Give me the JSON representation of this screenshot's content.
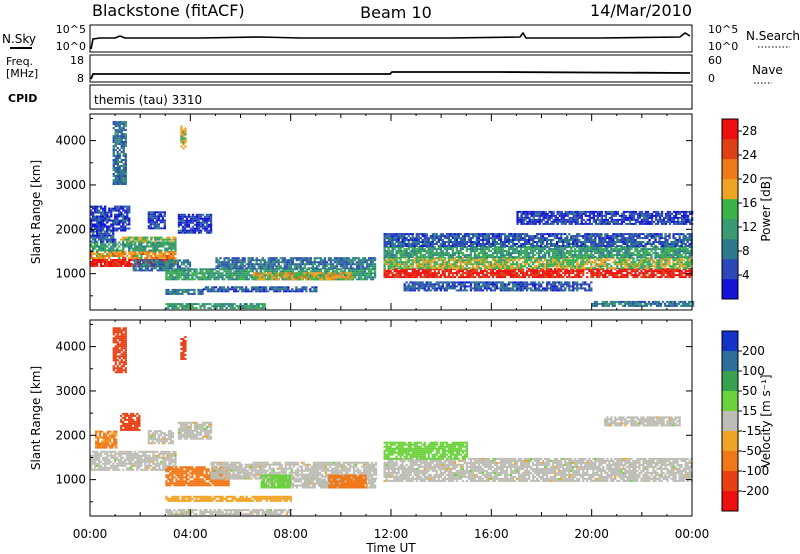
{
  "header": {
    "station": "Blackstone (fitACF)",
    "beam": "Beam 10",
    "date": "14/Mar/2010"
  },
  "top_panels": {
    "nsky": {
      "label": "N.Sky",
      "ticks": [
        "10^5",
        "10^0"
      ]
    },
    "nsearch": {
      "label": "N.Search",
      "ticks": [
        "10^5",
        "10^0"
      ]
    },
    "freq": {
      "label_lines": [
        "Freq.",
        "[MHz]"
      ],
      "ticks": [
        "18",
        "8"
      ]
    },
    "nave": {
      "label": "Nave",
      "ticks": [
        "60",
        "0"
      ]
    },
    "cpid": {
      "label": "CPID",
      "value": "themis (tau) 3310"
    }
  },
  "colors": {
    "background": "#ffffff",
    "axis": "#000000",
    "ground_scatter": "#bdbdb5"
  },
  "chart_data": [
    {
      "type": "heatmap",
      "name": "power",
      "ylabel": "Slant Range [km]",
      "xlabel": "Time UT",
      "x_ticks": [
        "00:00",
        "04:00",
        "08:00",
        "12:00",
        "16:00",
        "20:00",
        "00:00"
      ],
      "y_ticks": [
        1000,
        2000,
        3000,
        4000
      ],
      "ylim": [
        180,
        4600
      ],
      "xlim_hours": [
        0,
        24
      ],
      "colorbar": {
        "label": "Power [dB]",
        "ticks": [
          4,
          8,
          12,
          16,
          20,
          24,
          28
        ],
        "range": [
          0,
          30
        ],
        "colors": [
          "#1414d6",
          "#2d48b8",
          "#2e7a8c",
          "#3a9a72",
          "#39b24a",
          "#f0a424",
          "#f07a18",
          "#e04016",
          "#ee1010"
        ]
      },
      "regions": [
        {
          "t0": 0.0,
          "t1": 3.4,
          "r0": 1150,
          "r1": 1330,
          "level": 28
        },
        {
          "t0": 0.0,
          "t1": 3.4,
          "r0": 1330,
          "r1": 1500,
          "level": 20
        },
        {
          "t0": 0.0,
          "t1": 3.4,
          "r0": 1500,
          "r1": 1700,
          "level": 12
        },
        {
          "t0": 0.0,
          "t1": 1.0,
          "r0": 1700,
          "r1": 1950,
          "level": 6
        },
        {
          "t0": 1.2,
          "t1": 3.4,
          "r0": 1700,
          "r1": 1800,
          "level": 16
        },
        {
          "t0": 0.0,
          "t1": 1.6,
          "r0": 1950,
          "r1": 2500,
          "level": 4
        },
        {
          "t0": 2.3,
          "t1": 3.0,
          "r0": 2000,
          "r1": 2400,
          "level": 4
        },
        {
          "t0": 3.5,
          "t1": 4.8,
          "r0": 1900,
          "r1": 2350,
          "level": 4
        },
        {
          "t0": 1.7,
          "t1": 4.0,
          "r0": 1050,
          "r1": 1300,
          "level": 8
        },
        {
          "t0": 3.0,
          "t1": 11.4,
          "r0": 850,
          "r1": 1100,
          "level": 12
        },
        {
          "t0": 5.0,
          "t1": 11.4,
          "r0": 1100,
          "r1": 1350,
          "level": 8
        },
        {
          "t0": 6.5,
          "t1": 10.5,
          "r0": 850,
          "r1": 1000,
          "level": 18
        },
        {
          "t0": 3.0,
          "t1": 4.5,
          "r0": 520,
          "r1": 620,
          "level": 8
        },
        {
          "t0": 4.5,
          "t1": 9.0,
          "r0": 580,
          "r1": 680,
          "level": 6
        },
        {
          "t0": 3.0,
          "t1": 7.0,
          "r0": 200,
          "r1": 320,
          "level": 12
        },
        {
          "t0": 11.7,
          "t1": 24.0,
          "r0": 900,
          "r1": 1100,
          "level": 28
        },
        {
          "t0": 11.7,
          "t1": 24.0,
          "r0": 1100,
          "r1": 1350,
          "level": 16
        },
        {
          "t0": 11.7,
          "t1": 24.0,
          "r0": 1350,
          "r1": 1600,
          "level": 12
        },
        {
          "t0": 11.7,
          "t1": 24.0,
          "r0": 1600,
          "r1": 1900,
          "level": 6
        },
        {
          "t0": 17.0,
          "t1": 24.0,
          "r0": 2100,
          "r1": 2400,
          "level": 4
        },
        {
          "t0": 12.5,
          "t1": 20.0,
          "r0": 600,
          "r1": 800,
          "level": 6
        },
        {
          "t0": 20.0,
          "t1": 24.0,
          "r0": 250,
          "r1": 380,
          "level": 8
        },
        {
          "t0": 0.9,
          "t1": 1.4,
          "r0": 3000,
          "r1": 4400,
          "level": 8
        },
        {
          "t0": 3.6,
          "t1": 3.8,
          "r0": 3800,
          "r1": 4300,
          "level": 16
        }
      ]
    },
    {
      "type": "heatmap",
      "name": "velocity",
      "ylabel": "Slant Range [km]",
      "xlabel": "Time UT",
      "x_ticks": [
        "00:00",
        "04:00",
        "08:00",
        "12:00",
        "16:00",
        "20:00",
        "00:00"
      ],
      "y_ticks": [
        1000,
        2000,
        3000,
        4000
      ],
      "ylim": [
        180,
        4600
      ],
      "xlim_hours": [
        0,
        24
      ],
      "colorbar": {
        "label": "Velocity [m s⁻¹]",
        "ticks": [
          200,
          100,
          50,
          15,
          -15,
          -50,
          -100,
          -200
        ],
        "colors": [
          "#1432c8",
          "#2e6e9a",
          "#39a050",
          "#6cd23c",
          "#bdbdb5",
          "#f0a424",
          "#f07818",
          "#e84014",
          "#ee1010"
        ]
      },
      "regions": [
        {
          "t0": 0.0,
          "t1": 3.4,
          "r0": 1200,
          "r1": 1650,
          "vel": 0
        },
        {
          "t0": 0.2,
          "t1": 1.0,
          "r0": 1700,
          "r1": 2100,
          "vel": -60
        },
        {
          "t0": 1.2,
          "t1": 2.0,
          "r0": 2100,
          "r1": 2500,
          "vel": -150
        },
        {
          "t0": 2.3,
          "t1": 3.3,
          "r0": 1800,
          "r1": 2100,
          "vel": 0
        },
        {
          "t0": 3.5,
          "t1": 4.8,
          "r0": 1900,
          "r1": 2300,
          "vel": 0
        },
        {
          "t0": 3.0,
          "t1": 5.5,
          "r0": 850,
          "r1": 1300,
          "vel": -70
        },
        {
          "t0": 4.8,
          "t1": 11.4,
          "r0": 1000,
          "r1": 1400,
          "vel": 0
        },
        {
          "t0": 7.0,
          "t1": 11.4,
          "r0": 800,
          "r1": 1000,
          "vel": 0
        },
        {
          "t0": 6.8,
          "t1": 8.0,
          "r0": 800,
          "r1": 1100,
          "vel": 30
        },
        {
          "t0": 9.5,
          "t1": 11.0,
          "r0": 800,
          "r1": 1100,
          "vel": -70
        },
        {
          "t0": 3.0,
          "t1": 8.0,
          "r0": 500,
          "r1": 600,
          "vel": -30
        },
        {
          "t0": 11.7,
          "t1": 24.0,
          "r0": 950,
          "r1": 1450,
          "vel": 0
        },
        {
          "t0": 11.7,
          "t1": 15.0,
          "r0": 1450,
          "r1": 1850,
          "vel": 30
        },
        {
          "t0": 20.5,
          "t1": 23.5,
          "r0": 2200,
          "r1": 2400,
          "vel": 0
        },
        {
          "t0": 0.9,
          "t1": 1.4,
          "r0": 3400,
          "r1": 4400,
          "vel": -150
        },
        {
          "t0": 3.6,
          "t1": 3.8,
          "r0": 3700,
          "r1": 4200,
          "vel": -150
        },
        {
          "t0": 3.0,
          "t1": 8.0,
          "r0": 200,
          "r1": 300,
          "vel": 0
        }
      ]
    }
  ]
}
